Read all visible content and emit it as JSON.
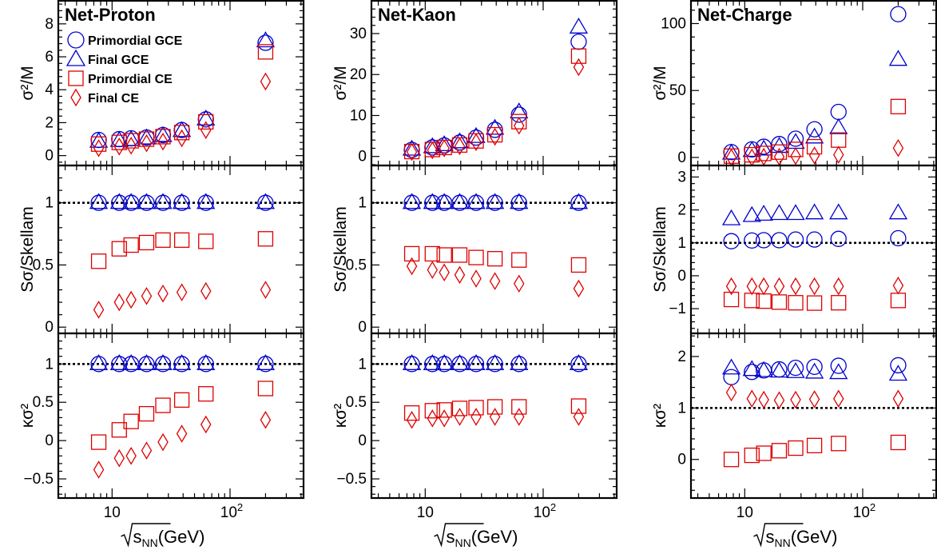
{
  "chart_data": [
    {
      "type": "scatter",
      "title": "Net-Proton",
      "xlabel": "√sNN(GeV)",
      "x": [
        7.7,
        11.5,
        14.5,
        19.6,
        27,
        39,
        62.4,
        200
      ],
      "xscale": "log",
      "xlim": [
        3.5,
        420
      ],
      "xticks": [
        "10",
        "10²"
      ],
      "legend": {
        "placement": "top-left",
        "entries": [
          "Primordial GCE",
          "Final GCE",
          "Primordial CE",
          "Final CE"
        ]
      },
      "rows": [
        {
          "ylabel": "σ²/M",
          "ylim": [
            -0.6,
            9.4
          ],
          "yticks": [
            0,
            2,
            4,
            6,
            8
          ],
          "series": [
            {
              "name": "Primordial GCE",
              "marker": "circle",
              "color": "#0000cc",
              "values": [
                0.95,
                1.0,
                1.05,
                1.1,
                1.25,
                1.55,
                2.2,
                6.85
              ]
            },
            {
              "name": "Final GCE",
              "marker": "triangle",
              "color": "#0000cc",
              "values": [
                0.85,
                0.9,
                0.95,
                1.05,
                1.2,
                1.5,
                2.2,
                6.95
              ]
            },
            {
              "name": "Primordial CE",
              "marker": "square",
              "color": "#dd0000",
              "values": [
                0.7,
                0.8,
                0.9,
                1.0,
                1.15,
                1.4,
                2.05,
                6.3
              ]
            },
            {
              "name": "Final CE",
              "marker": "diamond",
              "color": "#dd0000",
              "values": [
                0.45,
                0.55,
                0.6,
                0.75,
                0.85,
                1.05,
                1.55,
                4.5
              ]
            }
          ]
        },
        {
          "ylabel": "Sσ/Skellam",
          "ylim": [
            -0.05,
            1.3
          ],
          "yticks": [
            0,
            0.5,
            1
          ],
          "reference": 1,
          "series": [
            {
              "name": "Primordial GCE",
              "marker": "circle",
              "color": "#0000cc",
              "values": [
                1,
                1,
                1,
                1,
                1,
                1,
                1,
                1
              ]
            },
            {
              "name": "Final GCE",
              "marker": "triangle",
              "color": "#0000cc",
              "values": [
                1,
                1,
                1,
                1,
                1,
                1,
                1,
                1
              ]
            },
            {
              "name": "Primordial CE",
              "marker": "square",
              "color": "#dd0000",
              "values": [
                0.53,
                0.63,
                0.66,
                0.68,
                0.7,
                0.7,
                0.69,
                0.71
              ]
            },
            {
              "name": "Final CE",
              "marker": "diamond",
              "color": "#dd0000",
              "values": [
                0.14,
                0.2,
                0.22,
                0.25,
                0.27,
                0.28,
                0.29,
                0.3
              ]
            }
          ]
        },
        {
          "ylabel": "κσ²",
          "ylim": [
            -0.75,
            1.4
          ],
          "yticks": [
            -0.5,
            0,
            0.5,
            1
          ],
          "reference": 1,
          "series": [
            {
              "name": "Primordial GCE",
              "marker": "circle",
              "color": "#0000cc",
              "values": [
                1,
                1,
                1,
                1,
                1,
                1,
                1,
                1
              ]
            },
            {
              "name": "Final GCE",
              "marker": "triangle",
              "color": "#0000cc",
              "values": [
                1,
                1,
                1,
                1,
                1,
                1,
                1,
                1
              ]
            },
            {
              "name": "Primordial CE",
              "marker": "square",
              "color": "#dd0000",
              "values": [
                -0.02,
                0.14,
                0.25,
                0.35,
                0.46,
                0.53,
                0.61,
                0.68
              ]
            },
            {
              "name": "Final CE",
              "marker": "diamond",
              "color": "#dd0000",
              "values": [
                -0.38,
                -0.23,
                -0.2,
                -0.13,
                -0.02,
                0.09,
                0.21,
                0.27
              ]
            }
          ]
        }
      ]
    },
    {
      "type": "scatter",
      "title": "Net-Kaon",
      "xlabel": "√sNN(GeV)",
      "x": [
        7.7,
        11.5,
        14.5,
        19.6,
        27,
        39,
        62.4,
        200
      ],
      "xscale": "log",
      "xlim": [
        3.5,
        420
      ],
      "xticks": [
        "10",
        "10²"
      ],
      "rows": [
        {
          "ylabel": "σ²/M",
          "ylim": [
            -2.2,
            38
          ],
          "yticks": [
            0,
            10,
            20,
            30
          ],
          "series": [
            {
              "name": "Primordial GCE",
              "marker": "circle",
              "color": "#0000cc",
              "values": [
                1.6,
                2.2,
                2.7,
                3.4,
                4.6,
                6.5,
                10.2,
                28.0
              ]
            },
            {
              "name": "Final GCE",
              "marker": "triangle",
              "color": "#0000cc",
              "values": [
                1.7,
                2.3,
                2.8,
                3.5,
                4.8,
                6.8,
                10.8,
                31.5
              ]
            },
            {
              "name": "Primordial CE",
              "marker": "square",
              "color": "#dd0000",
              "values": [
                1.2,
                1.7,
                2.2,
                2.8,
                3.8,
                5.3,
                8.5,
                24.5
              ]
            },
            {
              "name": "Final CE",
              "marker": "diamond",
              "color": "#dd0000",
              "values": [
                1.1,
                1.5,
                2.0,
                2.5,
                3.5,
                4.8,
                7.5,
                21.8
              ]
            }
          ]
        },
        {
          "ylabel": "Sσ/Skellam",
          "ylim": [
            -0.05,
            1.3
          ],
          "yticks": [
            0,
            0.5,
            1
          ],
          "reference": 1,
          "series": [
            {
              "name": "Primordial GCE",
              "marker": "circle",
              "color": "#0000cc",
              "values": [
                1,
                1,
                1,
                1,
                1,
                1,
                1,
                1
              ]
            },
            {
              "name": "Final GCE",
              "marker": "triangle",
              "color": "#0000cc",
              "values": [
                1,
                1,
                1,
                1,
                1,
                1,
                1,
                1
              ]
            },
            {
              "name": "Primordial CE",
              "marker": "square",
              "color": "#dd0000",
              "values": [
                0.59,
                0.59,
                0.58,
                0.58,
                0.56,
                0.55,
                0.54,
                0.5
              ]
            },
            {
              "name": "Final CE",
              "marker": "diamond",
              "color": "#dd0000",
              "values": [
                0.49,
                0.46,
                0.44,
                0.42,
                0.39,
                0.37,
                0.35,
                0.31
              ]
            }
          ]
        },
        {
          "ylabel": "κσ²",
          "ylim": [
            -0.75,
            1.4
          ],
          "yticks": [
            -0.5,
            0,
            0.5,
            1
          ],
          "reference": 1,
          "series": [
            {
              "name": "Primordial GCE",
              "marker": "circle",
              "color": "#0000cc",
              "values": [
                1,
                1,
                1,
                1,
                1,
                1,
                1,
                1
              ]
            },
            {
              "name": "Final GCE",
              "marker": "triangle",
              "color": "#0000cc",
              "values": [
                1,
                1,
                1,
                1,
                1,
                1,
                1,
                1
              ]
            },
            {
              "name": "Primordial CE",
              "marker": "square",
              "color": "#dd0000",
              "values": [
                0.36,
                0.39,
                0.4,
                0.42,
                0.43,
                0.44,
                0.44,
                0.45
              ]
            },
            {
              "name": "Final CE",
              "marker": "diamond",
              "color": "#dd0000",
              "values": [
                0.27,
                0.29,
                0.29,
                0.31,
                0.31,
                0.31,
                0.31,
                0.31
              ]
            }
          ]
        }
      ]
    },
    {
      "type": "scatter",
      "title": "Net-Charge",
      "xlabel": "√sNN(GeV)",
      "x": [
        7.7,
        11.5,
        14.5,
        19.6,
        27,
        39,
        62.4,
        200
      ],
      "xscale": "log",
      "xlim": [
        3.5,
        420
      ],
      "xticks": [
        "10",
        "10²"
      ],
      "rows": [
        {
          "ylabel": "σ²/M",
          "ylim": [
            -6,
            117
          ],
          "yticks": [
            0,
            50,
            100
          ],
          "series": [
            {
              "name": "Primordial GCE",
              "marker": "circle",
              "color": "#0000cc",
              "values": [
                4,
                6,
                8,
                10,
                14,
                21,
                34,
                107
              ]
            },
            {
              "name": "Final GCE",
              "marker": "triangle",
              "color": "#0000cc",
              "values": [
                3,
                5,
                6,
                8,
                11,
                15,
                22,
                73
              ]
            },
            {
              "name": "Primordial CE",
              "marker": "square",
              "color": "#dd0000",
              "values": [
                1,
                2,
                3,
                4,
                6,
                8,
                13,
                38
              ]
            },
            {
              "name": "Final CE",
              "marker": "diamond",
              "color": "#dd0000",
              "values": [
                0,
                0,
                0.5,
                0.5,
                1,
                1.5,
                2,
                7
              ]
            }
          ]
        },
        {
          "ylabel": "Sσ/Skellam",
          "ylim": [
            -1.75,
            3.35
          ],
          "yticks": [
            -1,
            0,
            1,
            2,
            3
          ],
          "reference": 1,
          "series": [
            {
              "name": "Primordial GCE",
              "marker": "circle",
              "color": "#0000cc",
              "values": [
                1.05,
                1.07,
                1.08,
                1.08,
                1.1,
                1.1,
                1.12,
                1.14
              ]
            },
            {
              "name": "Final GCE",
              "marker": "triangle",
              "color": "#0000cc",
              "values": [
                1.72,
                1.82,
                1.86,
                1.88,
                1.88,
                1.9,
                1.9,
                1.9
              ]
            },
            {
              "name": "Primordial CE",
              "marker": "square",
              "color": "#dd0000",
              "values": [
                -0.72,
                -0.75,
                -0.77,
                -0.8,
                -0.82,
                -0.83,
                -0.82,
                -0.75
              ]
            },
            {
              "name": "Final CE",
              "marker": "diamond",
              "color": "#dd0000",
              "values": [
                -0.32,
                -0.32,
                -0.32,
                -0.32,
                -0.32,
                -0.32,
                -0.32,
                -0.3
              ]
            }
          ]
        },
        {
          "ylabel": "κσ²",
          "ylim": [
            -0.75,
            2.45
          ],
          "yticks": [
            0,
            1,
            2
          ],
          "reference": 1,
          "series": [
            {
              "name": "Primordial GCE",
              "marker": "circle",
              "color": "#0000cc",
              "values": [
                1.6,
                1.7,
                1.73,
                1.75,
                1.78,
                1.8,
                1.82,
                1.83
              ]
            },
            {
              "name": "Final GCE",
              "marker": "triangle",
              "color": "#0000cc",
              "values": [
                1.77,
                1.74,
                1.72,
                1.71,
                1.7,
                1.69,
                1.68,
                1.65
              ]
            },
            {
              "name": "Primordial CE",
              "marker": "square",
              "color": "#dd0000",
              "values": [
                0.0,
                0.08,
                0.12,
                0.17,
                0.22,
                0.27,
                0.31,
                0.33
              ]
            },
            {
              "name": "Final CE",
              "marker": "diamond",
              "color": "#dd0000",
              "values": [
                1.3,
                1.18,
                1.16,
                1.15,
                1.16,
                1.17,
                1.18,
                1.18
              ]
            }
          ]
        }
      ]
    }
  ]
}
